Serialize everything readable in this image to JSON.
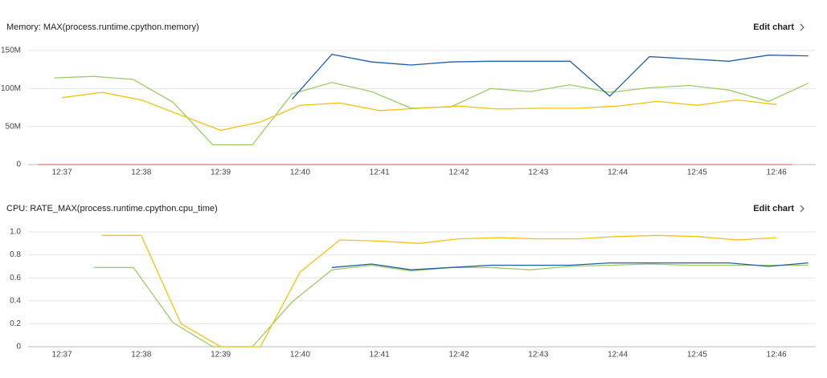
{
  "chart_data": [
    {
      "type": "line",
      "title": "Memory: MAX(process.runtime.cpython.memory)",
      "edit_label": "Edit chart",
      "xlim": [
        36.4,
        46.45
      ],
      "xticks": [
        {
          "value": 37,
          "label": "12:37"
        },
        {
          "value": 38,
          "label": "12:38"
        },
        {
          "value": 39,
          "label": "12:39"
        },
        {
          "value": 40,
          "label": "12:40"
        },
        {
          "value": 41,
          "label": "12:41"
        },
        {
          "value": 42,
          "label": "12:42"
        },
        {
          "value": 43,
          "label": "12:43"
        },
        {
          "value": 44,
          "label": "12:44"
        },
        {
          "value": 45,
          "label": "12:45"
        },
        {
          "value": 46,
          "label": "12:46"
        }
      ],
      "ylim": [
        0,
        150000000
      ],
      "yticks": [
        0,
        {
          "value": 50000000,
          "label": "50M"
        },
        {
          "value": 100000000,
          "label": "100M"
        },
        {
          "value": 150000000,
          "label": "150M"
        }
      ],
      "grid": true,
      "series": [
        {
          "color": "#e57373",
          "x": [
            36.7,
            46.2
          ],
          "values": [
            0,
            0
          ]
        },
        {
          "color": "#9ccc65",
          "x": [
            36.9,
            37.4,
            37.9,
            38.4,
            38.9,
            39.4,
            39.9,
            40.4,
            40.9,
            41.4,
            41.9,
            42.4,
            42.9,
            43.4,
            43.9,
            44.4,
            44.9,
            45.4,
            45.9,
            46.4
          ],
          "values": [
            114000000,
            116000000,
            112000000,
            82000000,
            26000000,
            26000000,
            93000000,
            108000000,
            96000000,
            74000000,
            76000000,
            100000000,
            96000000,
            105000000,
            95000000,
            101000000,
            104000000,
            98000000,
            83000000,
            107000000
          ]
        },
        {
          "color": "#f4c20d",
          "x": [
            37.0,
            37.5,
            38.0,
            38.5,
            39.0,
            39.5,
            40.0,
            40.5,
            41.0,
            41.5,
            42.0,
            42.5,
            43.0,
            43.5,
            44.0,
            44.5,
            45.0,
            45.5,
            46.0
          ],
          "values": [
            88000000,
            95000000,
            85000000,
            65000000,
            45000000,
            56000000,
            78000000,
            81000000,
            71000000,
            74000000,
            77000000,
            73000000,
            74000000,
            74000000,
            77000000,
            83000000,
            78000000,
            85000000,
            79000000
          ]
        },
        {
          "color": "#1f5fa8",
          "x": [
            39.9,
            40.4,
            40.9,
            41.4,
            41.9,
            42.4,
            42.9,
            43.4,
            43.9,
            44.4,
            44.9,
            45.4,
            45.9,
            46.4
          ],
          "values": [
            86000000,
            145000000,
            135000000,
            131000000,
            135000000,
            136000000,
            136000000,
            136000000,
            90000000,
            142000000,
            139000000,
            136000000,
            144000000,
            143000000
          ]
        }
      ]
    },
    {
      "type": "line",
      "title": "CPU: RATE_MAX(process.runtime.cpython.cpu_time)",
      "edit_label": "Edit chart",
      "xlim": [
        36.4,
        46.45
      ],
      "xticks": [
        {
          "value": 37,
          "label": "12:37"
        },
        {
          "value": 38,
          "label": "12:38"
        },
        {
          "value": 39,
          "label": "12:39"
        },
        {
          "value": 40,
          "label": "12:40"
        },
        {
          "value": 41,
          "label": "12:41"
        },
        {
          "value": 42,
          "label": "12:42"
        },
        {
          "value": 43,
          "label": "12:43"
        },
        {
          "value": 44,
          "label": "12:44"
        },
        {
          "value": 45,
          "label": "12:45"
        },
        {
          "value": 46,
          "label": "12:46"
        }
      ],
      "ylim": [
        0,
        1
      ],
      "yticks": [
        0,
        0.2,
        0.4,
        0.6,
        0.8,
        {
          "value": 1,
          "label": "1.0"
        }
      ],
      "grid": true,
      "series": [
        {
          "color": "#9ccc65",
          "x": [
            37.4,
            37.9,
            38.4,
            38.9,
            39.4,
            39.9,
            40.4,
            40.9,
            41.4,
            41.9,
            42.4,
            42.9,
            43.4,
            43.9,
            44.4,
            44.9,
            45.4,
            45.9,
            46.4
          ],
          "values": [
            0.69,
            0.69,
            0.21,
            0,
            0,
            0.39,
            0.67,
            0.71,
            0.66,
            0.69,
            0.69,
            0.67,
            0.7,
            0.71,
            0.72,
            0.71,
            0.71,
            0.71,
            0.71
          ]
        },
        {
          "color": "#f4c20d",
          "x": [
            37.5,
            38.0,
            38.5,
            39.0,
            39.5,
            40.0,
            40.5,
            41.0,
            41.5,
            42.0,
            42.5,
            43.0,
            43.5,
            44.0,
            44.5,
            45.0,
            45.5,
            46.0
          ],
          "values": [
            0.97,
            0.97,
            0.2,
            0,
            0,
            0.65,
            0.93,
            0.92,
            0.9,
            0.94,
            0.95,
            0.94,
            0.94,
            0.96,
            0.97,
            0.96,
            0.93,
            0.95
          ]
        },
        {
          "color": "#1f5fa8",
          "x": [
            40.4,
            40.9,
            41.4,
            41.9,
            42.4,
            42.9,
            43.4,
            43.9,
            44.4,
            44.9,
            45.4,
            45.9,
            46.4
          ],
          "values": [
            0.69,
            0.72,
            0.67,
            0.69,
            0.71,
            0.71,
            0.71,
            0.73,
            0.73,
            0.73,
            0.73,
            0.7,
            0.73
          ]
        }
      ]
    }
  ]
}
